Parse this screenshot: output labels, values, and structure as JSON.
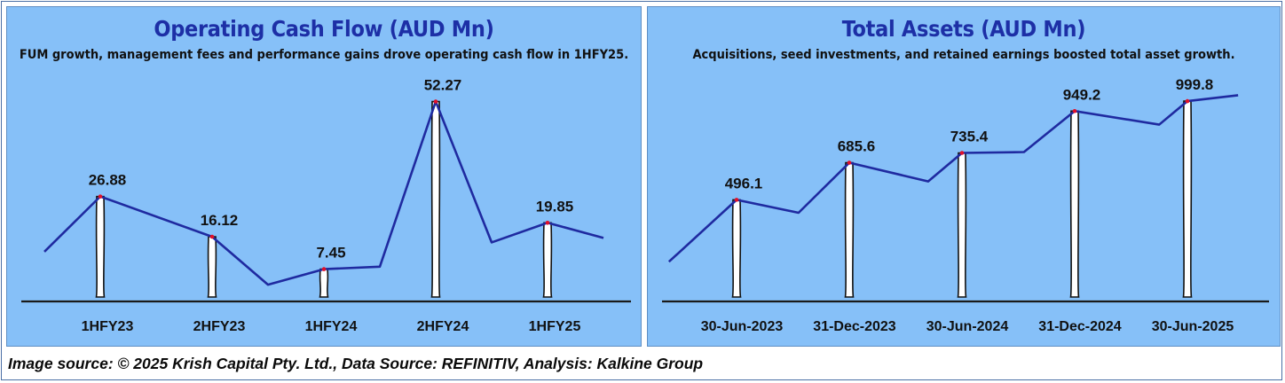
{
  "chart_data": [
    {
      "type": "bar",
      "title": "Operating Cash Flow (AUD Mn)",
      "subtitle": "FUM growth, management fees and performance gains drove operating cash flow in 1HFY25.",
      "categories": [
        "1HFY23",
        "2HFY23",
        "1HFY24",
        "2HFY24",
        "1HFY25"
      ],
      "values": [
        26.88,
        16.12,
        7.45,
        52.27,
        19.85
      ],
      "value_labels": [
        "26.88",
        "16.12",
        "7.45",
        "52.27",
        "19.85"
      ],
      "ylim": [
        0,
        55
      ],
      "grid": false,
      "trend_line": {
        "x": [
          -0.5,
          0,
          1,
          1.5,
          2,
          2.5,
          3,
          3.5,
          4,
          4.5
        ],
        "y": [
          12.1,
          26.88,
          16.12,
          3.3,
          7.45,
          8.1,
          52.27,
          14.6,
          19.85,
          15.8
        ]
      },
      "colors": {
        "bar": "#ffffff",
        "bar_stroke": "#111111",
        "line": "#1f2aa0",
        "marker": "#e0102a"
      }
    },
    {
      "type": "bar",
      "title": "Total Assets (AUD Mn)",
      "subtitle": "Acquisitions, seed investments, and retained earnings boosted total asset growth.",
      "categories": [
        "30-Jun-2023",
        "31-Dec-2023",
        "30-Jun-2024",
        "31-Dec-2024",
        "30-Jun-2025"
      ],
      "values": [
        496.1,
        685.6,
        735.4,
        949.2,
        999.8
      ],
      "value_labels": [
        "496.1",
        "685.6",
        "735.4",
        "949.2",
        "999.8"
      ],
      "ylim": [
        0,
        1050
      ],
      "grid": false,
      "trend_line": {
        "x": [
          -0.6,
          0,
          0.55,
          1,
          1.7,
          2,
          2.55,
          3,
          3.75,
          4,
          4.45
        ],
        "y": [
          180,
          496.1,
          430,
          685.6,
          590,
          735.4,
          740,
          949.2,
          880,
          999.8,
          1030
        ]
      },
      "colors": {
        "bar": "#ffffff",
        "bar_stroke": "#111111",
        "line": "#1f2aa0",
        "marker": "#e0102a"
      }
    }
  ],
  "footer": "Image source: © 2025 Krish Capital Pty. Ltd., Data Source: REFINITIV, Analysis: Kalkine Group"
}
